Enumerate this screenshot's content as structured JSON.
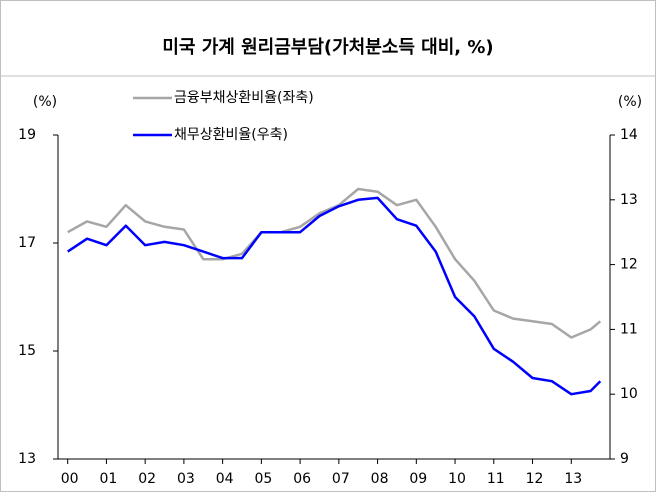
{
  "chart_data": {
    "type": "line",
    "title": "미국 가계 원리금부담(가처분소득 대비, %)",
    "y_label": "(%)",
    "y2_label": "(%)",
    "x": [
      2000,
      2000.5,
      2001,
      2001.5,
      2002,
      2002.5,
      2003,
      2003.5,
      2004,
      2004.5,
      2005,
      2005.5,
      2006,
      2006.5,
      2007,
      2007.5,
      2008,
      2008.5,
      2009,
      2009.5,
      2010,
      2010.5,
      2011,
      2011.5,
      2012,
      2012.5,
      2013,
      2013.5,
      2013.75
    ],
    "series": [
      {
        "name": "금융부채상환비율(좌축)",
        "color": "#a6a6a6",
        "axis": "y",
        "values": [
          17.2,
          17.4,
          17.3,
          17.7,
          17.4,
          17.3,
          17.25,
          16.7,
          16.7,
          16.8,
          17.2,
          17.2,
          17.3,
          17.55,
          17.7,
          18.0,
          17.95,
          17.7,
          17.8,
          17.3,
          16.7,
          16.3,
          15.75,
          15.6,
          15.55,
          15.5,
          15.25,
          15.4,
          15.55
        ]
      },
      {
        "name": "채무상환비율(우축)",
        "color": "#0000ff",
        "axis": "y2",
        "values": [
          12.2,
          12.4,
          12.3,
          12.6,
          12.3,
          12.35,
          12.3,
          12.2,
          12.1,
          12.1,
          12.5,
          12.5,
          12.5,
          12.75,
          12.9,
          13.0,
          13.03,
          12.7,
          12.6,
          12.2,
          11.5,
          11.2,
          10.7,
          10.5,
          10.25,
          10.2,
          10.0,
          10.05,
          10.2
        ]
      }
    ],
    "xlim": [
      1999.75,
      2014
    ],
    "xticks": [
      {
        "value": 2000,
        "label": "00"
      },
      {
        "value": 2001,
        "label": "01"
      },
      {
        "value": 2002,
        "label": "02"
      },
      {
        "value": 2003,
        "label": "03"
      },
      {
        "value": 2004,
        "label": "04"
      },
      {
        "value": 2005,
        "label": "05"
      },
      {
        "value": 2006,
        "label": "06"
      },
      {
        "value": 2007,
        "label": "07"
      },
      {
        "value": 2008,
        "label": "08"
      },
      {
        "value": 2009,
        "label": "09"
      },
      {
        "value": 2010,
        "label": "10"
      },
      {
        "value": 2011,
        "label": "11"
      },
      {
        "value": 2012,
        "label": "12"
      },
      {
        "value": 2013,
        "label": "13"
      }
    ],
    "ylim": [
      13,
      19
    ],
    "yticks": [
      13,
      15,
      17,
      19
    ],
    "y2lim": [
      9,
      14
    ],
    "y2ticks": [
      9,
      10,
      11,
      12,
      13,
      14
    ]
  }
}
